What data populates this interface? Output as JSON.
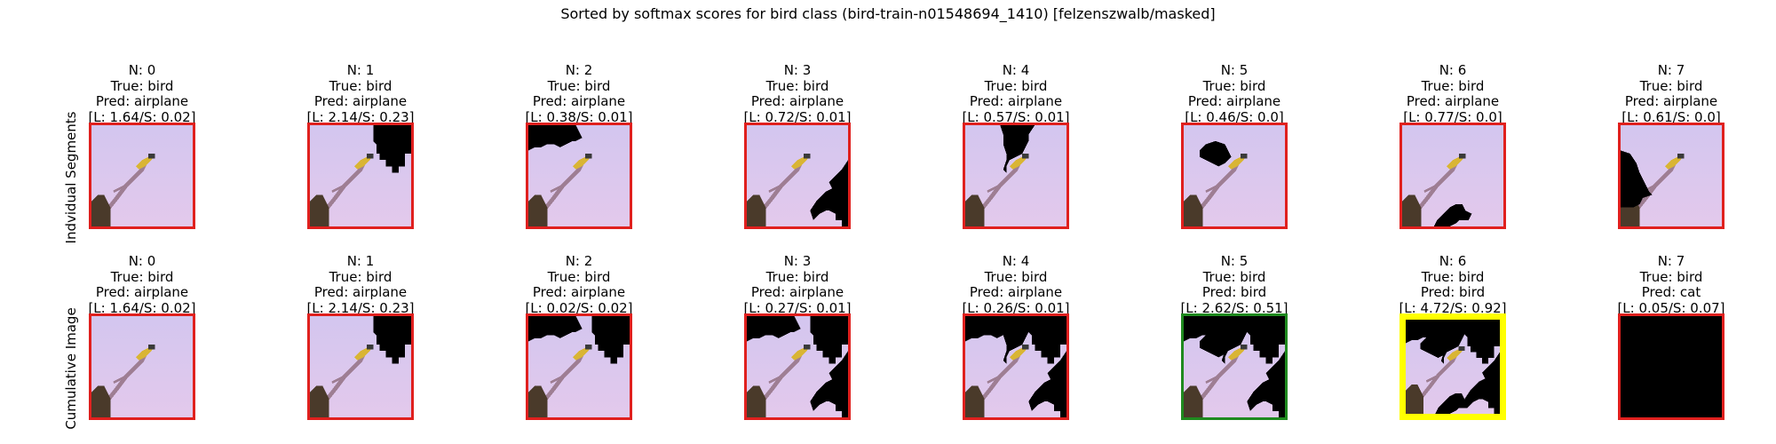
{
  "figure": {
    "title": "Sorted by softmax scores for bird class (bird-train-n01548694_1410) [felzenszwalb/masked]",
    "colors": {
      "sky": "#e3c9ec",
      "sky_top": "#d3c6ef",
      "mask": "#000000",
      "frame_red": "#e0201e",
      "frame_green": "#1f8a1f",
      "frame_yellow": "#ffff00",
      "bird_yellow": "#d9b534",
      "branch": "#9e7e93",
      "stump": "#4a3a2a"
    }
  },
  "rows": [
    {
      "label": "Indvidual Segments",
      "panels": [
        {
          "n": "N: 0",
          "true": "True: bird",
          "pred": "Pred: airplane",
          "scores": "[L: 1.64/S: 0.02]",
          "frame": "red",
          "mask_segments": []
        },
        {
          "n": "N: 1",
          "true": "True: bird",
          "pred": "Pred: airplane",
          "scores": "[L: 2.14/S: 0.23]",
          "frame": "red",
          "mask_segments": [
            1
          ]
        },
        {
          "n": "N: 2",
          "true": "True: bird",
          "pred": "Pred: airplane",
          "scores": "[L: 0.38/S: 0.01]",
          "frame": "red",
          "mask_segments": [
            2
          ]
        },
        {
          "n": "N: 3",
          "true": "True: bird",
          "pred": "Pred: airplane",
          "scores": "[L: 0.72/S: 0.01]",
          "frame": "red",
          "mask_segments": [
            3
          ]
        },
        {
          "n": "N: 4",
          "true": "True: bird",
          "pred": "Pred: airplane",
          "scores": "[L: 0.57/S: 0.01]",
          "frame": "red",
          "mask_segments": [
            4
          ]
        },
        {
          "n": "N: 5",
          "true": "True: bird",
          "pred": "Pred: airplane",
          "scores": "[L: 0.46/S: 0.0]",
          "frame": "red",
          "mask_segments": [
            5
          ]
        },
        {
          "n": "N: 6",
          "true": "True: bird",
          "pred": "Pred: airplane",
          "scores": "[L: 0.77/S: 0.0]",
          "frame": "red",
          "mask_segments": [
            6
          ]
        },
        {
          "n": "N: 7",
          "true": "True: bird",
          "pred": "Pred: airplane",
          "scores": "[L: 0.61/S: 0.0]",
          "frame": "red",
          "mask_segments": [
            7
          ]
        }
      ]
    },
    {
      "label": "Cumulative Image",
      "panels": [
        {
          "n": "N: 0",
          "true": "True: bird",
          "pred": "Pred: airplane",
          "scores": "[L: 1.64/S: 0.02]",
          "frame": "red",
          "mask_segments": []
        },
        {
          "n": "N: 1",
          "true": "True: bird",
          "pred": "Pred: airplane",
          "scores": "[L: 2.14/S: 0.23]",
          "frame": "red",
          "mask_segments": [
            1
          ]
        },
        {
          "n": "N: 2",
          "true": "True: bird",
          "pred": "Pred: airplane",
          "scores": "[L: 0.02/S: 0.02]",
          "frame": "red",
          "mask_segments": [
            1,
            2
          ]
        },
        {
          "n": "N: 3",
          "true": "True: bird",
          "pred": "Pred: airplane",
          "scores": "[L: 0.27/S: 0.01]",
          "frame": "red",
          "mask_segments": [
            1,
            2,
            3
          ]
        },
        {
          "n": "N: 4",
          "true": "True: bird",
          "pred": "Pred: airplane",
          "scores": "[L: 0.26/S: 0.01]",
          "frame": "red",
          "mask_segments": [
            1,
            2,
            3,
            4
          ]
        },
        {
          "n": "N: 5",
          "true": "True: bird",
          "pred": "Pred: bird",
          "scores": "[L: 2.62/S: 0.51]",
          "frame": "green",
          "mask_segments": [
            1,
            2,
            3,
            4,
            5
          ]
        },
        {
          "n": "N: 6",
          "true": "True: bird",
          "pred": "Pred: bird",
          "scores": "[L: 4.72/S: 0.92]",
          "frame": "yellow",
          "mask_segments": [
            1,
            2,
            3,
            4,
            5,
            6
          ]
        },
        {
          "n": "N: 7",
          "true": "True: bird",
          "pred": "Pred: cat",
          "scores": "[L: 0.05/S: 0.07]",
          "frame": "red",
          "mask_segments": [
            0,
            1,
            2,
            3,
            4,
            5,
            6,
            7
          ]
        }
      ]
    }
  ]
}
